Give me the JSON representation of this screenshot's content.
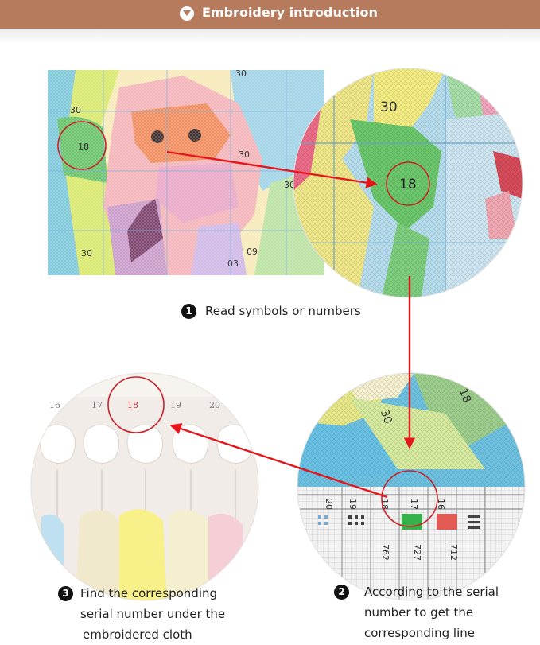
{
  "header": {
    "title": "Embroidery introduction"
  },
  "chart_preview": {
    "numbers": [
      "30",
      "18",
      "30",
      "30",
      "30",
      "09",
      "03",
      "30"
    ]
  },
  "zoom_one": {
    "numbers": [
      "30",
      "18"
    ]
  },
  "thread_card": {
    "numbers": [
      "16",
      "17",
      "18",
      "19",
      "20"
    ]
  },
  "zoom_two": {
    "number": "30",
    "legend_numbers": [
      "20",
      "19",
      "18",
      "17",
      "16"
    ],
    "legend_codes": [
      "762",
      "727",
      "712"
    ]
  },
  "steps": [
    {
      "number": "1",
      "text": "Read symbols or  numbers"
    },
    {
      "number": "2",
      "lines": [
        "According to the serial",
        "number to get the",
        "corresponding line"
      ]
    },
    {
      "number": "3",
      "lines": [
        "Find the corresponding",
        "serial number under the",
        "embroidered cloth"
      ]
    }
  ],
  "colors": {
    "header": "#b67a5c",
    "arrow": "#e4161b",
    "highlight_circle": "#c8232b"
  }
}
